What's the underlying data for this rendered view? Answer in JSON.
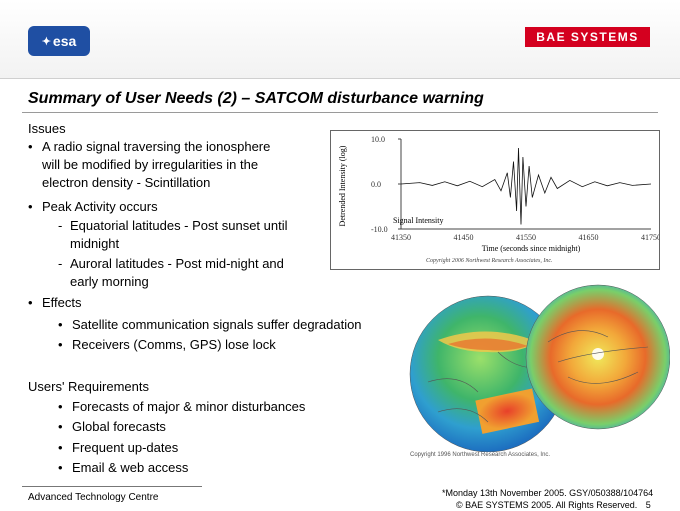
{
  "header": {
    "esa_logo": "esa",
    "bae_logo": "BAE SYSTEMS"
  },
  "title": "Summary of User Needs (2) – SATCOM disturbance warning",
  "issues": {
    "heading": "Issues",
    "bullet1": [
      "A radio signal traversing the ionosphere",
      "will be modified by irregularities in the",
      "electron density - Scintillation"
    ],
    "bullet2": "Peak Activity occurs",
    "sub1": [
      "Equatorial latitudes - Post sunset until",
      "midnight"
    ],
    "sub2": [
      "Auroral latitudes - Post mid-night and",
      "early morning"
    ],
    "bullet3": "Effects",
    "effects": [
      "Satellite communication signals suffer degradation",
      "Receivers (Comms, GPS) lose lock"
    ]
  },
  "requirements": {
    "heading": "Users' Requirements",
    "items": [
      "Forecasts of major & minor disturbances",
      "Global forecasts",
      "Frequent up-dates",
      "Email & web access"
    ]
  },
  "chart_data": {
    "type": "line",
    "ylabel": "Detrended Intensity (log)",
    "xlabel": "Time (seconds since midnight)",
    "legend": "Signal Intensity",
    "copyright": "Copyright 2006 Northwest Research Associates, Inc.",
    "y_ticks": [
      "10.0",
      "0.0",
      "-10.0"
    ],
    "x_ticks": [
      "41350",
      "41450",
      "41550",
      "41650",
      "41750"
    ],
    "xlim": [
      41350,
      41750
    ],
    "ylim": [
      -10,
      10
    ],
    "series": [
      {
        "values": [
          [
            41350,
            0
          ],
          [
            41380,
            0.3
          ],
          [
            41400,
            -0.3
          ],
          [
            41420,
            0.5
          ],
          [
            41440,
            -0.4
          ],
          [
            41460,
            0.6
          ],
          [
            41480,
            -0.6
          ],
          [
            41500,
            1
          ],
          [
            41510,
            -1.5
          ],
          [
            41520,
            2.5
          ],
          [
            41525,
            -3
          ],
          [
            41530,
            5
          ],
          [
            41535,
            -6
          ],
          [
            41538,
            8
          ],
          [
            41542,
            -9
          ],
          [
            41545,
            6
          ],
          [
            41550,
            -5
          ],
          [
            41555,
            4
          ],
          [
            41560,
            -3
          ],
          [
            41570,
            2
          ],
          [
            41580,
            -2
          ],
          [
            41590,
            1.5
          ],
          [
            41600,
            -1
          ],
          [
            41620,
            0.8
          ],
          [
            41640,
            -0.6
          ],
          [
            41660,
            0.5
          ],
          [
            41680,
            -0.4
          ],
          [
            41700,
            0.3
          ],
          [
            41720,
            -0.3
          ],
          [
            41750,
            0
          ]
        ]
      }
    ]
  },
  "globe_caption": "Copyright 1996 Northwest Research Associates, Inc.",
  "footer": {
    "left": "Advanced Technology Centre",
    "right1": "*Monday 13th November 2005. GSY/050388/104764",
    "right2": "© BAE SYSTEMS 2005. All Rights Reserved.",
    "page": "5"
  },
  "colors": {
    "esa_blue": "#1f4fa3",
    "bae_red": "#d4001f"
  }
}
